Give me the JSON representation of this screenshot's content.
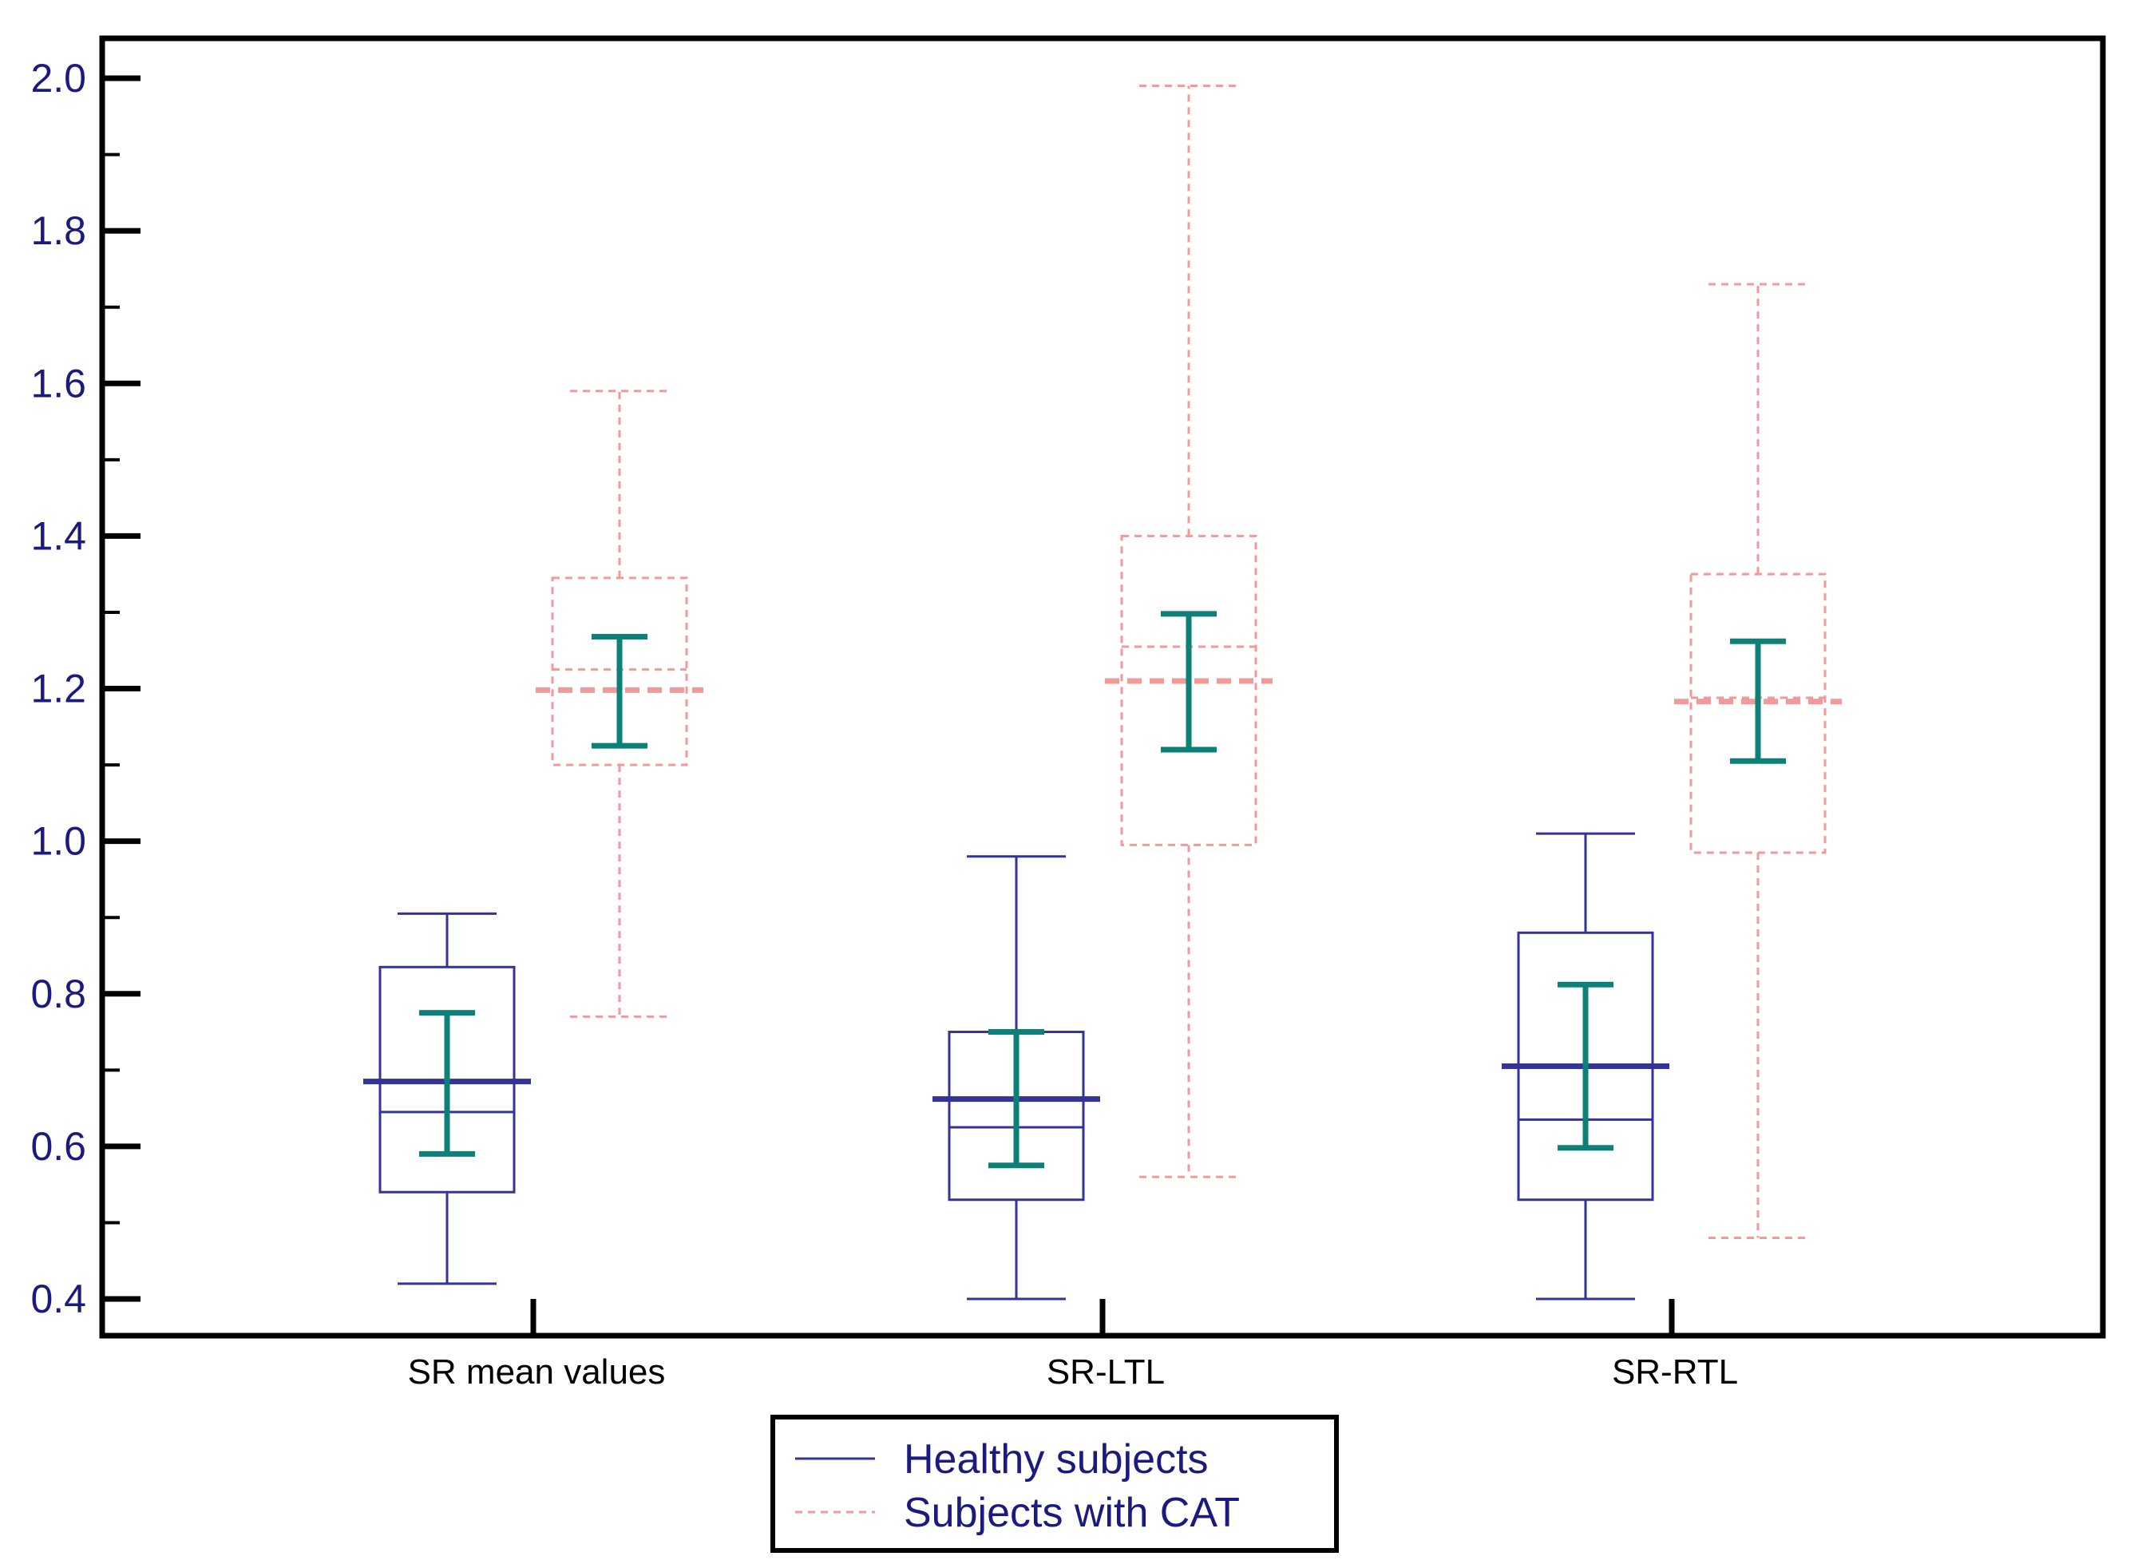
{
  "chart_data": {
    "type": "boxplot",
    "title": "",
    "xlabel": "",
    "ylabel": "",
    "ylim": [
      0.4,
      2.0
    ],
    "yticks": [
      "0.4",
      "0.6",
      "0.8",
      "1.0",
      "1.2",
      "1.4",
      "1.6",
      "1.8",
      "2.0"
    ],
    "ytick_values": [
      0.4,
      0.6,
      0.8,
      1.0,
      1.2,
      1.4,
      1.6,
      1.8,
      2.0
    ],
    "y_minor_step": 0.1,
    "grid": false,
    "categories": [
      "SR mean values",
      "SR-LTL",
      "SR-RTL"
    ],
    "series": [
      {
        "name": "Healthy subjects",
        "color": "#33339a",
        "line_style": "solid",
        "boxes": [
          {
            "category": "SR mean values",
            "whisker_low": 0.42,
            "q1": 0.54,
            "median": 0.645,
            "q3": 0.835,
            "whisker_high": 0.905,
            "mean": 0.685,
            "ci_low": 0.59,
            "ci_high": 0.775
          },
          {
            "category": "SR-LTL",
            "whisker_low": 0.4,
            "q1": 0.53,
            "median": 0.625,
            "q3": 0.75,
            "whisker_high": 0.98,
            "mean": 0.662,
            "ci_low": 0.575,
            "ci_high": 0.75
          },
          {
            "category": "SR-RTL",
            "whisker_low": 0.4,
            "q1": 0.53,
            "median": 0.635,
            "q3": 0.88,
            "whisker_high": 1.01,
            "mean": 0.705,
            "ci_low": 0.598,
            "ci_high": 0.812
          }
        ]
      },
      {
        "name": "Subjects with CAT",
        "color": "#f29a9a",
        "line_style": "dashed",
        "boxes": [
          {
            "category": "SR mean values",
            "whisker_low": 0.77,
            "q1": 1.1,
            "median": 1.225,
            "q3": 1.345,
            "whisker_high": 1.59,
            "mean": 1.198,
            "ci_low": 1.125,
            "ci_high": 1.268
          },
          {
            "category": "SR-LTL",
            "whisker_low": 0.56,
            "q1": 0.995,
            "median": 1.255,
            "q3": 1.4,
            "whisker_high": 1.99,
            "mean": 1.21,
            "ci_low": 1.12,
            "ci_high": 1.298
          },
          {
            "category": "SR-RTL",
            "whisker_low": 0.48,
            "q1": 0.985,
            "median": 1.188,
            "q3": 1.35,
            "whisker_high": 1.73,
            "mean": 1.183,
            "ci_low": 1.105,
            "ci_high": 1.262
          }
        ]
      }
    ],
    "mean_ci_color": "#0d8078",
    "legend": {
      "position": "bottom-center",
      "entries": [
        "Healthy subjects",
        "Subjects with CAT"
      ]
    },
    "tick_label_color": "#1a1a80",
    "frame_color": "#000000"
  }
}
